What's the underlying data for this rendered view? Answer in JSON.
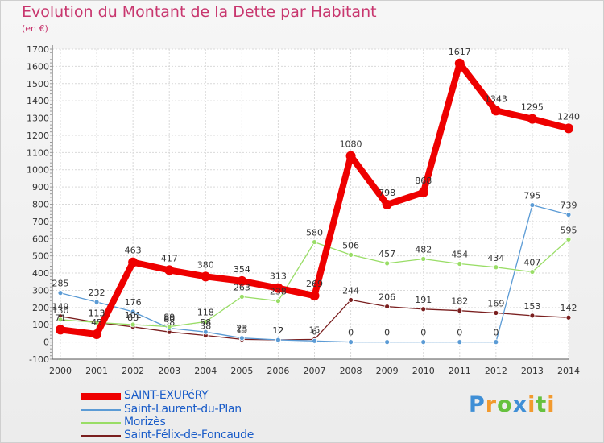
{
  "chart_data": {
    "type": "line",
    "title": "Evolution du Montant de la Dette par Habitant",
    "subtitle": "(en €)",
    "xlabel": "",
    "ylabel": "",
    "x": [
      "2000",
      "2001",
      "2002",
      "2003",
      "2004",
      "2005",
      "2006",
      "2007",
      "2008",
      "2009",
      "2010",
      "2011",
      "2012",
      "2013",
      "2014"
    ],
    "ylim": [
      -100,
      1700
    ],
    "yticks": [
      -100,
      0,
      100,
      200,
      300,
      400,
      500,
      600,
      700,
      800,
      900,
      1000,
      1100,
      1200,
      1300,
      1400,
      1500,
      1600,
      1700
    ],
    "grid": true,
    "legend_position": "bottom-left",
    "series": [
      {
        "name": "SAINT-EXUPéRY",
        "color": "#ee0000",
        "values": [
          71,
          45,
          463,
          417,
          380,
          354,
          313,
          269,
          1080,
          798,
          868,
          1617,
          1343,
          1295,
          1240
        ],
        "labels": [
          "71",
          "45",
          "463",
          "417",
          "380",
          "354",
          "313",
          "269",
          "1080",
          "798",
          "868",
          "1617",
          "1343",
          "1295",
          "1240"
        ]
      },
      {
        "name": "Saint-Laurent-du-Plan",
        "color": "#5b9bd5",
        "values": [
          285,
          232,
          176,
          80,
          58,
          23,
          12,
          6,
          0,
          0,
          0,
          0,
          0,
          795,
          739
        ],
        "labels": [
          "285",
          "232",
          "176",
          "80",
          "58",
          "23",
          "12",
          "6",
          "0",
          "0",
          "0",
          "0",
          "0",
          "795",
          "739"
        ]
      },
      {
        "name": "Morizès",
        "color": "#99dd66",
        "values": [
          130,
          113,
          101,
          89,
          118,
          263,
          238,
          580,
          506,
          457,
          482,
          454,
          434,
          407,
          595
        ],
        "labels": [
          "130",
          "113",
          "101",
          "89",
          "118",
          "263",
          "238",
          "580",
          "506",
          "457",
          "482",
          "454",
          "434",
          "407",
          "595"
        ]
      },
      {
        "name": "Saint-Félix-de-Foncaude",
        "color": "#7a1f1f",
        "values": [
          149,
          113,
          88,
          58,
          38,
          15,
          12,
          15,
          244,
          206,
          191,
          182,
          169,
          153,
          142
        ],
        "labels": [
          "149",
          "113",
          "88",
          "58",
          "38",
          "15",
          "12",
          "15",
          "244",
          "206",
          "191",
          "182",
          "169",
          "153",
          "142"
        ]
      }
    ]
  },
  "brand": {
    "logo_text": "Proxiti",
    "colors": [
      "#3f8fd6",
      "#f29a2e",
      "#66c13e",
      "#3f8fd6",
      "#f29a2e",
      "#66c13e",
      "#f29a2e"
    ]
  }
}
